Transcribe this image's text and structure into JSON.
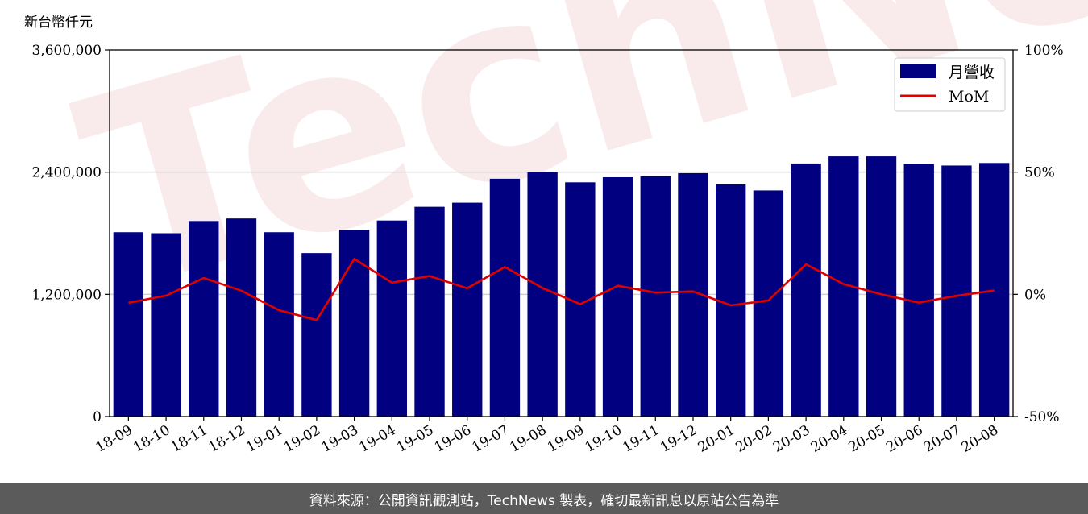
{
  "watermark": "TechNews",
  "footer": {
    "text": "資料來源：公開資訊觀測站，TechNews 製表，確切最新訊息以原站公告為準"
  },
  "chart_data": {
    "type": "bar",
    "unit_label": "新台幣仟元",
    "categories": [
      "18-09",
      "18-10",
      "18-11",
      "18-12",
      "19-01",
      "19-02",
      "19-03",
      "19-04",
      "19-05",
      "19-06",
      "19-07",
      "19-08",
      "19-09",
      "19-10",
      "19-11",
      "19-12",
      "20-01",
      "20-02",
      "20-03",
      "20-04",
      "20-05",
      "20-06",
      "20-07",
      "20-08"
    ],
    "series": [
      {
        "name": "月營收",
        "type": "bar",
        "axis": "left",
        "color": "#000080",
        "values": [
          1810000,
          1800000,
          1920000,
          1945000,
          1810000,
          1605000,
          1835000,
          1925000,
          2060000,
          2100000,
          2335000,
          2400000,
          2300000,
          2350000,
          2360000,
          2390000,
          2280000,
          2220000,
          2485000,
          2555000,
          2555000,
          2480000,
          2465000,
          2490000
        ]
      },
      {
        "name": "MoM",
        "type": "line",
        "axis": "right",
        "color": "#e00000",
        "values": [
          -3.5,
          -0.5,
          6.7,
          1.5,
          -6.5,
          -10.5,
          14.5,
          4.8,
          7.5,
          2.5,
          11.2,
          2.6,
          -4.0,
          3.5,
          0.7,
          1.2,
          -4.5,
          -2.5,
          12.3,
          4.2,
          0.0,
          -3.4,
          -0.6,
          1.6
        ]
      }
    ],
    "y_left": {
      "lim": [
        0,
        3600000
      ],
      "ticks": [
        0,
        1200000,
        2400000,
        3600000
      ],
      "tick_labels": [
        "0",
        "1,200,000",
        "2,400,000",
        "3,600,000"
      ]
    },
    "y_right": {
      "lim": [
        -50,
        100
      ],
      "ticks": [
        -50,
        0,
        50,
        100
      ],
      "tick_labels": [
        "-50%",
        "0%",
        "50%",
        "100%"
      ]
    },
    "grid": "horizontal",
    "legend": {
      "position": "top-right",
      "entries": [
        "月營收",
        "MoM"
      ]
    }
  }
}
